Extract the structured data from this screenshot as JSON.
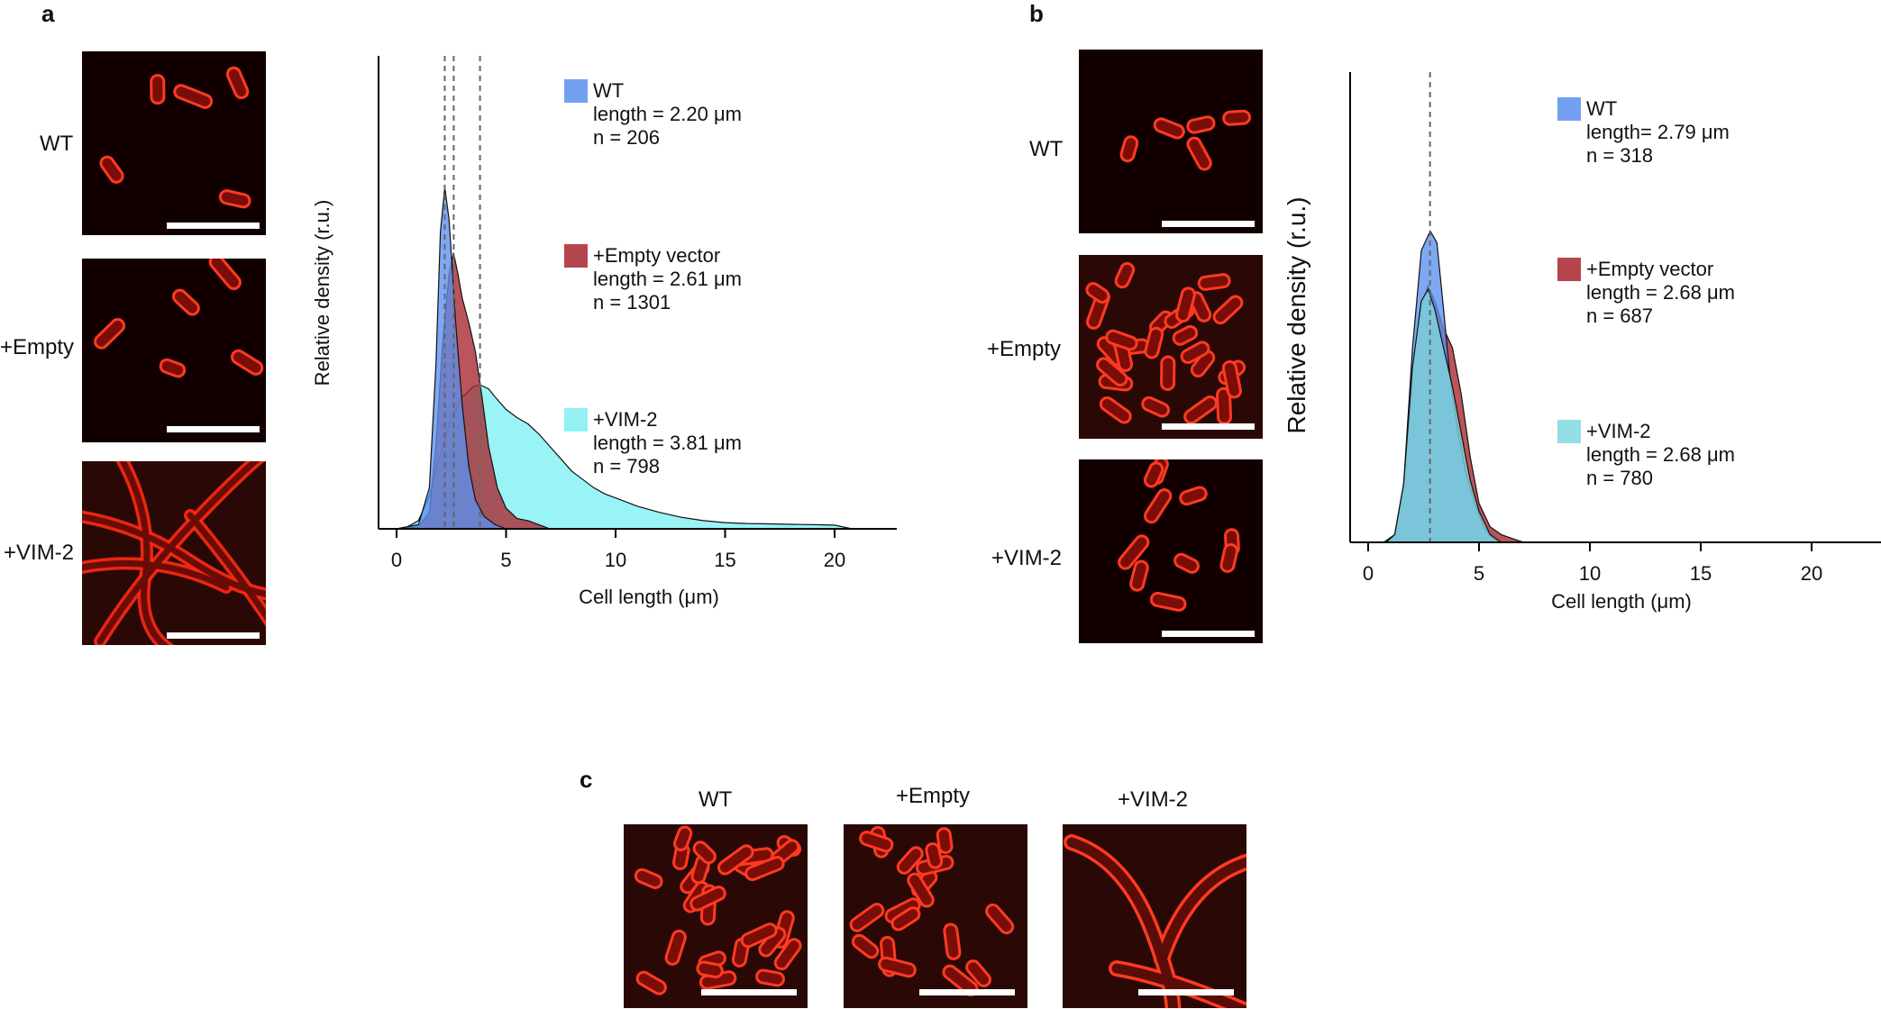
{
  "panels": {
    "a": {
      "letter": "a",
      "images": [
        {
          "label": "WT",
          "type": "short-sparse"
        },
        {
          "label": "+Empty",
          "type": "short-sparse2"
        },
        {
          "label": "+VIM-2",
          "type": "filament"
        }
      ]
    },
    "b": {
      "letter": "b",
      "images": [
        {
          "label": "WT",
          "type": "short-sparse"
        },
        {
          "label": "+Empty",
          "type": "short-dense"
        },
        {
          "label": "+VIM-2",
          "type": "short-medium"
        }
      ]
    },
    "c": {
      "letter": "c",
      "images": [
        {
          "label": "WT",
          "type": "short-dense"
        },
        {
          "label": "+Empty",
          "type": "short-dense2"
        },
        {
          "label": "+VIM-2",
          "type": "filament-c"
        }
      ]
    }
  },
  "chart_data": [
    {
      "id": "a",
      "type": "area",
      "xlabel": "Cell length (μm)",
      "ylabel": "Relative density (r.u.)",
      "xlim": [
        0,
        24
      ],
      "xticks": [
        0,
        5,
        10,
        15,
        20
      ],
      "tick_labels": [
        "0",
        "5",
        "10",
        "15",
        "20"
      ],
      "ylim": [
        0,
        1
      ],
      "medians": [
        2.2,
        2.61,
        3.81
      ],
      "series": [
        {
          "name": "+VIM-2",
          "color": "#7eeff2",
          "legend": {
            "name": "+VIM-2",
            "length": "length = 3.81 μm",
            "n": "n = 798"
          },
          "x": [
            0,
            0.5,
            1,
            1.5,
            2,
            2.5,
            3,
            3.5,
            3.8,
            4.2,
            4.5,
            5,
            5.5,
            6,
            6.5,
            7,
            7.5,
            8,
            8.5,
            9,
            9.5,
            10,
            11,
            12,
            13,
            14,
            15,
            16,
            17,
            18,
            19,
            20,
            20.8
          ],
          "y": [
            0,
            0.005,
            0.02,
            0.08,
            0.18,
            0.27,
            0.32,
            0.345,
            0.35,
            0.34,
            0.32,
            0.29,
            0.27,
            0.255,
            0.23,
            0.2,
            0.17,
            0.14,
            0.12,
            0.1,
            0.085,
            0.075,
            0.055,
            0.04,
            0.028,
            0.02,
            0.015,
            0.013,
            0.012,
            0.011,
            0.01,
            0.009,
            0
          ]
        },
        {
          "name": "+Empty vector",
          "color": "#a8242d",
          "legend": {
            "name": "+Empty vector",
            "length": "length = 2.61 μm",
            "n": "n = 1301"
          },
          "x": [
            0,
            1,
            1.5,
            1.8,
            2.1,
            2.4,
            2.6,
            2.8,
            3.0,
            3.3,
            3.6,
            3.9,
            4.2,
            4.6,
            5.0,
            5.5,
            6.0,
            6.5,
            7.0
          ],
          "y": [
            0,
            0.005,
            0.04,
            0.2,
            0.45,
            0.62,
            0.67,
            0.62,
            0.56,
            0.5,
            0.43,
            0.32,
            0.2,
            0.1,
            0.05,
            0.025,
            0.02,
            0.01,
            0
          ]
        },
        {
          "name": "WT",
          "color": "#5b8fee",
          "legend": {
            "name": "WT",
            "length": "length = 2.20 μm",
            "n": "n = 206"
          },
          "x": [
            0,
            1,
            1.5,
            1.8,
            2.0,
            2.2,
            2.4,
            2.7,
            3.0,
            3.3,
            3.6,
            4.0,
            4.5,
            5.0
          ],
          "y": [
            0,
            0.01,
            0.1,
            0.4,
            0.72,
            0.83,
            0.75,
            0.5,
            0.3,
            0.15,
            0.07,
            0.03,
            0.01,
            0
          ]
        }
      ]
    },
    {
      "id": "b",
      "type": "area",
      "xlabel": "Cell length (μm)",
      "ylabel": "Relative density (r.u.)",
      "xlim": [
        0,
        24
      ],
      "xticks": [
        0,
        5,
        10,
        15,
        20
      ],
      "tick_labels": [
        "0",
        "5",
        "10",
        "15",
        "20"
      ],
      "ylim": [
        0,
        1
      ],
      "medians": [
        2.79
      ],
      "series": [
        {
          "name": "+Empty vector",
          "color": "#a8242d",
          "legend": {
            "name": "+Empty vector",
            "length": "length = 2.68 μm",
            "n": "n = 687"
          },
          "x": [
            0.7,
            1.2,
            1.6,
            2.0,
            2.4,
            2.7,
            3.0,
            3.4,
            3.8,
            4.2,
            4.6,
            5.0,
            5.5,
            6.0,
            6.5,
            7.0
          ],
          "y": [
            0,
            0.02,
            0.15,
            0.4,
            0.6,
            0.66,
            0.62,
            0.55,
            0.5,
            0.38,
            0.22,
            0.1,
            0.04,
            0.02,
            0.01,
            0
          ]
        },
        {
          "name": "WT",
          "color": "#5b8fee",
          "legend": {
            "name": "WT",
            "length": "length= 2.79 μm",
            "n": "n = 318"
          },
          "x": [
            0.8,
            1.2,
            1.6,
            2.0,
            2.4,
            2.8,
            3.1,
            3.4,
            3.7,
            4.0,
            4.4,
            4.8,
            5.2,
            5.6,
            6.0
          ],
          "y": [
            0,
            0.02,
            0.15,
            0.5,
            0.75,
            0.8,
            0.77,
            0.6,
            0.42,
            0.3,
            0.18,
            0.1,
            0.04,
            0.01,
            0
          ]
        },
        {
          "name": "+VIM-2",
          "color": "#7fd8df",
          "legend": {
            "name": "+VIM-2",
            "length": "length = 2.68 μm",
            "n": "n = 780"
          },
          "x": [
            0.8,
            1.2,
            1.6,
            2.0,
            2.4,
            2.7,
            3.0,
            3.4,
            3.8,
            4.2,
            4.6,
            5.0,
            5.5,
            6.0
          ],
          "y": [
            0,
            0.02,
            0.15,
            0.45,
            0.62,
            0.65,
            0.6,
            0.5,
            0.4,
            0.28,
            0.16,
            0.08,
            0.02,
            0
          ]
        }
      ]
    }
  ]
}
